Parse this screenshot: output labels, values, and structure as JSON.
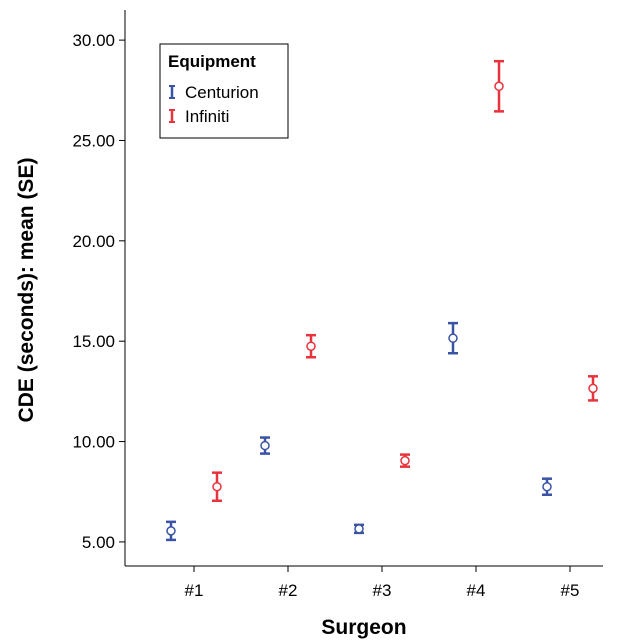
{
  "chart_data": {
    "type": "scatter",
    "subtype": "error-bar",
    "xlabel": "Surgeon",
    "ylabel": "CDE (seconds): mean (SE)",
    "categories": [
      "#1",
      "#2",
      "#3",
      "#4",
      "#5"
    ],
    "ylim": [
      3.8,
      31.5
    ],
    "yticks": [
      "5.00",
      "10.00",
      "15.00",
      "20.00",
      "25.00",
      "30.00"
    ],
    "grid": false,
    "legend": {
      "title": "Equipment",
      "position": "top-left"
    },
    "series": [
      {
        "name": "Centurion",
        "color": "#3a53a4",
        "mean": [
          5.55,
          9.8,
          5.65,
          15.15,
          7.75
        ],
        "se_low": [
          5.1,
          9.4,
          5.45,
          14.4,
          7.35
        ],
        "se_high": [
          6.0,
          10.2,
          5.85,
          15.9,
          8.15
        ]
      },
      {
        "name": "Infiniti",
        "color": "#e8323c",
        "mean": [
          7.75,
          14.75,
          9.05,
          27.7,
          12.65
        ],
        "se_low": [
          7.05,
          14.2,
          8.75,
          26.45,
          12.05
        ],
        "se_high": [
          8.45,
          15.3,
          9.35,
          28.95,
          13.25
        ]
      }
    ]
  }
}
